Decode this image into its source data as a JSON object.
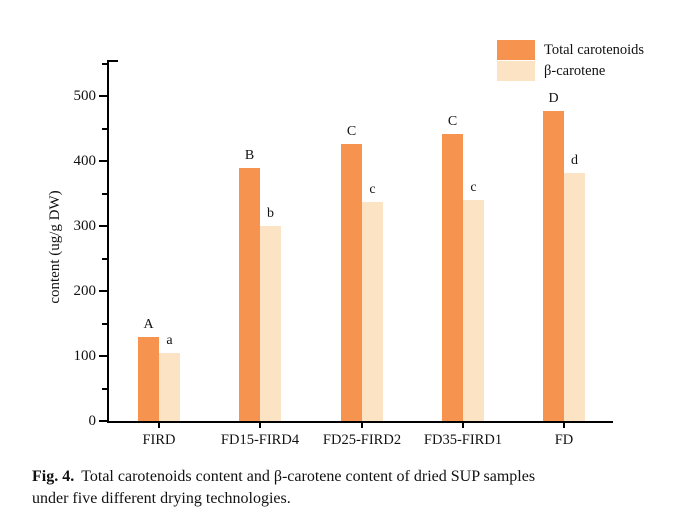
{
  "figure_caption": {
    "label": "Fig. 4.",
    "line1": "Total carotenoids content and β-carotene content of dried SUP samples",
    "line2": "under five different drying technologies."
  },
  "chart_data": {
    "type": "bar",
    "title": "",
    "xlabel": "",
    "ylabel": "content (ug/g DW)",
    "categories": [
      "FIRD",
      "FD15-FIRD4",
      "FD25-FIRD2",
      "FD35-FIRD1",
      "FD"
    ],
    "series": [
      {
        "name": "Total carotenoids",
        "color": "#F6934E",
        "values": [
          130,
          390,
          426,
          441,
          477
        ],
        "point_labels": [
          "A",
          "B",
          "C",
          "C",
          "D"
        ]
      },
      {
        "name": "β-carotene",
        "color": "#FBE3C3",
        "values": [
          105,
          300,
          337,
          340,
          382
        ],
        "point_labels": [
          "a",
          "b",
          "c",
          "c",
          "d"
        ]
      }
    ],
    "ylim": [
      0,
      555
    ],
    "yticks_major": [
      0,
      100,
      200,
      300,
      400,
      500
    ],
    "yticks_minor": [
      50,
      150,
      250,
      350,
      450,
      550
    ],
    "legend_position": "top-right",
    "grid": false,
    "axis_color": "#000000",
    "text_color": "#111111"
  }
}
